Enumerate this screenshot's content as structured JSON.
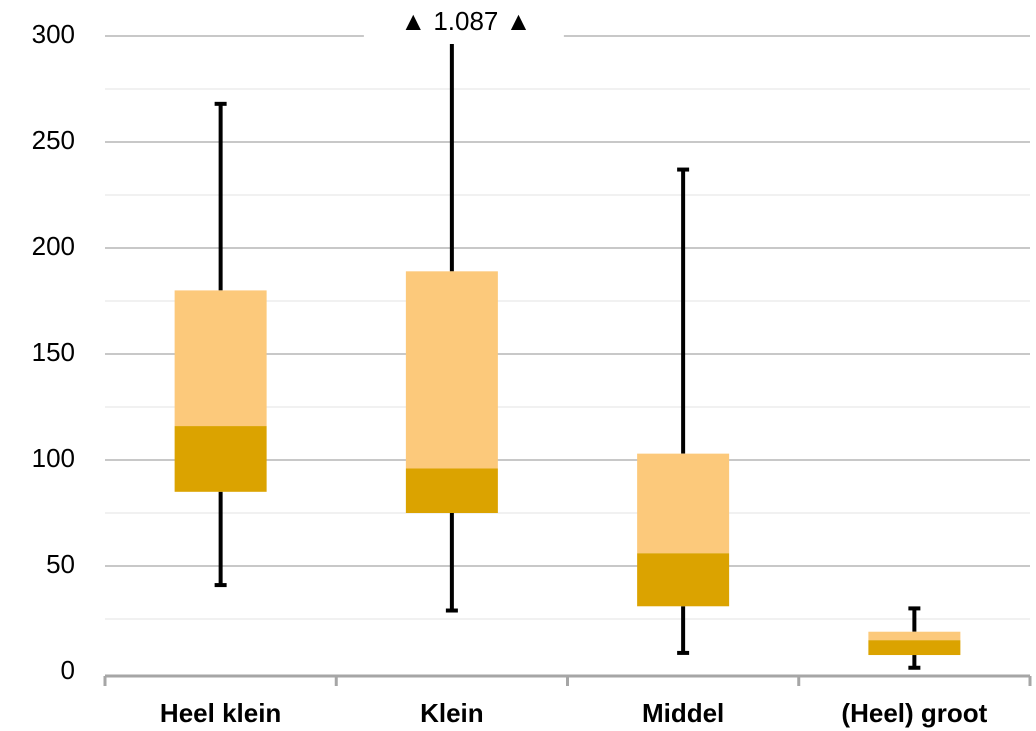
{
  "chart_data": {
    "type": "box",
    "categories": [
      "Heel klein",
      "Klein",
      "Middel",
      "(Heel) groot"
    ],
    "min": [
      41,
      29,
      9,
      2
    ],
    "q1": [
      85,
      75,
      31,
      8
    ],
    "median": [
      116,
      96,
      56,
      15
    ],
    "q3": [
      180,
      189,
      103,
      19
    ],
    "max": [
      268,
      1087,
      237,
      30
    ],
    "max_labels": [
      null,
      "▲ 1.087 ▲",
      null,
      null
    ],
    "colors": {
      "lower": "#dba300",
      "upper": "#fcc97b",
      "whisker": "#000000"
    },
    "ylim": [
      0,
      300
    ],
    "yticks": [
      0,
      50,
      100,
      150,
      200,
      250,
      300
    ],
    "minor_yticks": [
      25,
      75,
      125,
      175,
      225,
      275
    ],
    "grid": true
  }
}
